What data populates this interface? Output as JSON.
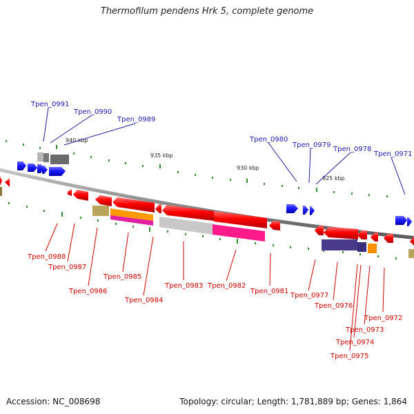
{
  "title": "Thermofilum pendens Hrk 5, complete genome",
  "footer": {
    "accession": "Accession: NC_008698",
    "summary": "Topology: circular; Length: 1,781,889 bp; Genes: 1,864"
  },
  "colors": {
    "forward_gene": "#1a1aff",
    "reverse_gene": "#ff0000",
    "forward_label": "#1a1aaa",
    "reverse_label": "#cc0000",
    "backbone": "#888888",
    "tick": "#2e8b2e"
  },
  "scale_labels": [
    "940 kbp",
    "935 kbp",
    "930 kbp",
    "925 kbp"
  ],
  "forward_labels": [
    "Tpen_0991",
    "Tpen_0990",
    "Tpen_0989",
    "Tpen_0980",
    "Tpen_0979",
    "Tpen_0978",
    "Tpen_0971"
  ],
  "reverse_labels": [
    "Tpen_0988",
    "Tpen_0987",
    "Tpen_0986",
    "Tpen_0985",
    "Tpen_0984",
    "Tpen_0983",
    "Tpen_0982",
    "Tpen_0981",
    "Tpen_0977",
    "Tpen_0976",
    "Tpen_0975",
    "Tpen_0974",
    "Tpen_0973",
    "Tpen_0972"
  ]
}
